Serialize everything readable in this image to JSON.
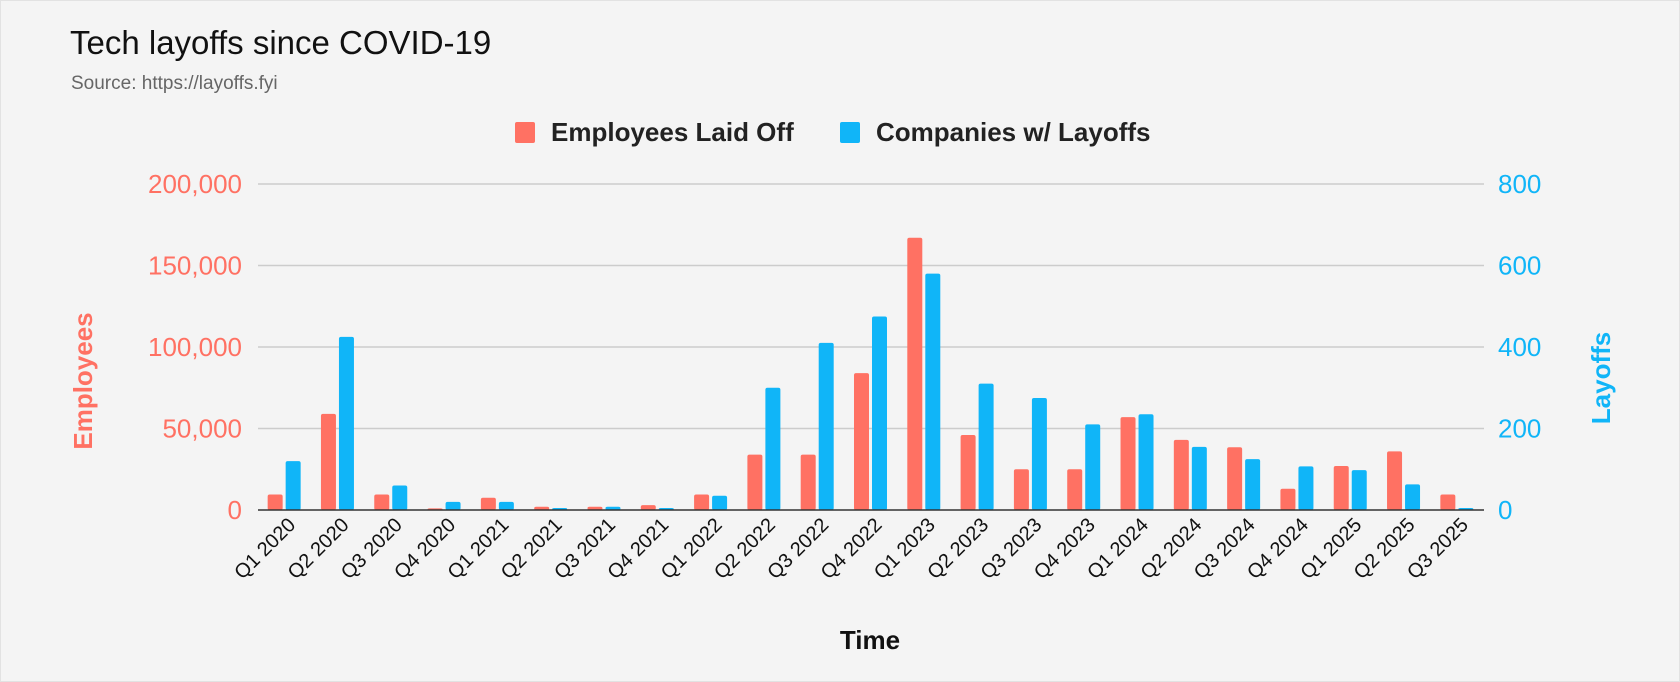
{
  "chart": {
    "title": "Tech layoffs since COVID-19",
    "subtitle": "Source: https://layoffs.fyi"
  },
  "colors": {
    "employees": "#ff7163",
    "companies": "#10b5f8",
    "grid": "#cccccc",
    "axis": "#333333",
    "background": "#f4f4f4"
  },
  "chart_data": {
    "type": "bar",
    "title": "Tech layoffs since COVID-19",
    "subtitle": "Source: https://layoffs.fyi",
    "xlabel": "Time",
    "ylabel": "Employees",
    "y2label": "Layoffs",
    "legend": {
      "position": "top-center",
      "entries": [
        "Employees Laid Off",
        "Companies w/ Layoffs"
      ]
    },
    "grid": true,
    "categories": [
      "Q1 2020",
      "Q2 2020",
      "Q3 2020",
      "Q4 2020",
      "Q1 2021",
      "Q2 2021",
      "Q3 2021",
      "Q4 2021",
      "Q1 2022",
      "Q2 2022",
      "Q3 2022",
      "Q4 2022",
      "Q1 2023",
      "Q2 2023",
      "Q3 2023",
      "Q4 2023",
      "Q1 2024",
      "Q2 2024",
      "Q3 2024",
      "Q4 2024",
      "Q1 2025",
      "Q2 2025",
      "Q3 2025"
    ],
    "ylim": [
      0,
      200000
    ],
    "y2lim": [
      0,
      800
    ],
    "yticks": [
      "0",
      "50,000",
      "100,000",
      "150,000",
      "200,000"
    ],
    "y2ticks": [
      "0",
      "200",
      "400",
      "600",
      "800"
    ],
    "series": [
      {
        "name": "Employees Laid Off",
        "axis": "left",
        "values": [
          9500,
          59000,
          9500,
          1000,
          7500,
          2000,
          2000,
          3000,
          9500,
          34000,
          34000,
          84000,
          167000,
          46000,
          25000,
          25000,
          57000,
          43000,
          38500,
          13000,
          27000,
          36000,
          9500
        ]
      },
      {
        "name": "Companies w/ Layoffs",
        "axis": "right",
        "values": [
          120,
          425,
          60,
          20,
          20,
          5,
          8,
          5,
          35,
          300,
          410,
          475,
          580,
          310,
          275,
          210,
          235,
          155,
          125,
          107,
          98,
          63,
          5
        ]
      }
    ]
  }
}
